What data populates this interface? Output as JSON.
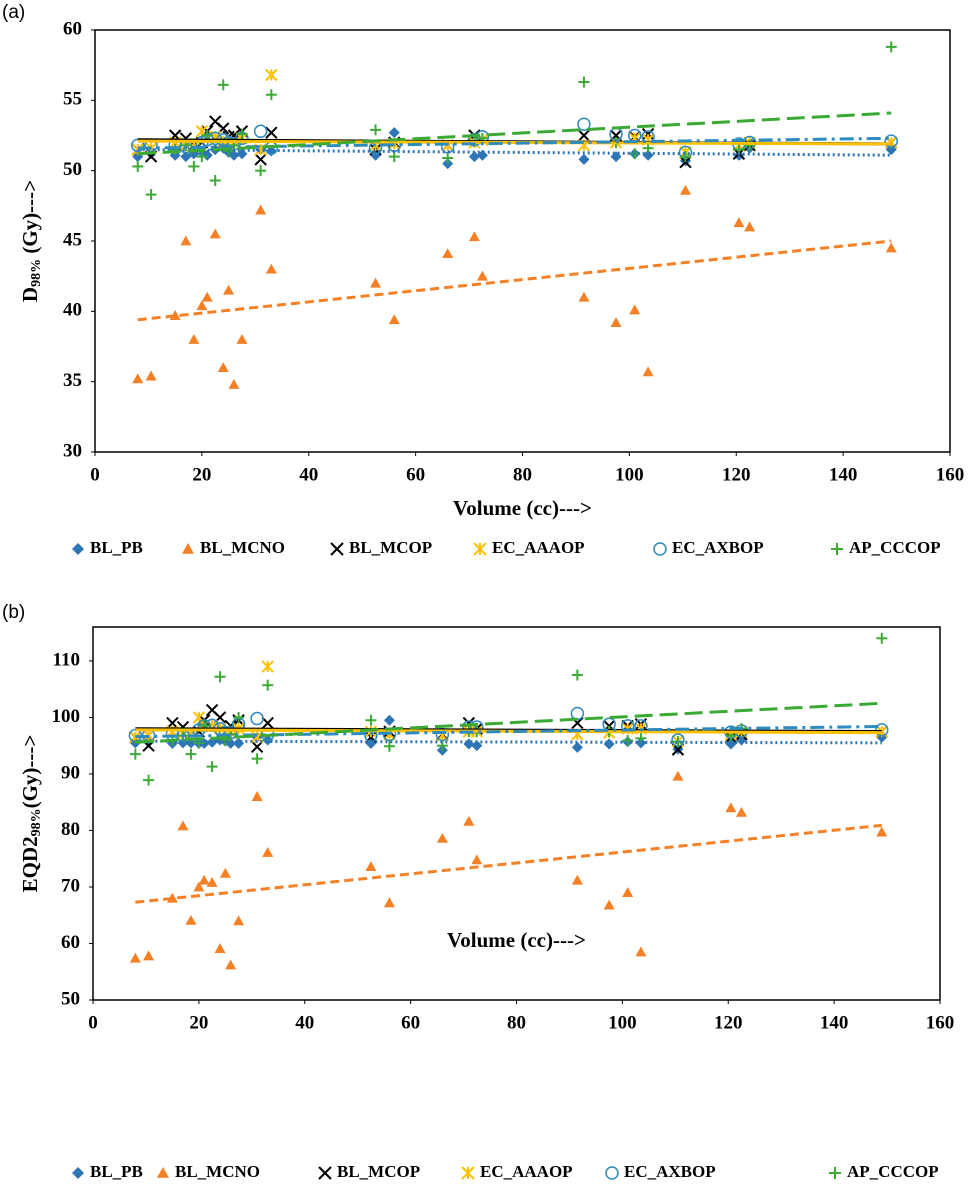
{
  "chart_data": [
    {
      "type": "scatter",
      "label": "(a)",
      "x_label": "Volume (cc)--->",
      "y_label": {
        "main": "D",
        "sub": "98%",
        "rest": " (Gy)--->"
      },
      "xlim": [
        0,
        160
      ],
      "xticks": [
        0,
        20,
        40,
        60,
        80,
        100,
        120,
        140,
        160
      ],
      "ylim": [
        30,
        60
      ],
      "yticks": [
        30,
        35,
        40,
        45,
        50,
        55,
        60
      ],
      "x": [
        8,
        10.5,
        15,
        17,
        18.5,
        20,
        21,
        22.5,
        24,
        25,
        26,
        27.5,
        31,
        33,
        52.5,
        56,
        66,
        71,
        72.5,
        91.5,
        97.5,
        101,
        103.5,
        110.5,
        120.5,
        122.5,
        149
      ],
      "series": [
        {
          "name": "BL_PB",
          "color": "#2e75b6",
          "marker": "diamond",
          "trend_style": "dotted",
          "values": [
            51.0,
            51.2,
            51.1,
            51.0,
            51.2,
            51.3,
            51.1,
            51.5,
            51.6,
            51.3,
            51.1,
            51.2,
            51.5,
            51.4,
            51.1,
            52.7,
            50.5,
            51.0,
            51.1,
            50.8,
            51.0,
            51.2,
            51.1,
            50.7,
            51.1,
            51.6,
            51.5
          ],
          "trend": {
            "x": [
              8,
              149
            ],
            "values": [
              51.5,
              51.1
            ]
          }
        },
        {
          "name": "BL_MCNO",
          "color": "#f58025",
          "marker": "triangle",
          "trend_style": "dashed",
          "values": [
            35.2,
            35.4,
            39.7,
            45.0,
            38.0,
            40.4,
            41.0,
            45.5,
            36.0,
            41.5,
            34.8,
            38.0,
            47.2,
            43.0,
            42.0,
            39.4,
            44.1,
            45.3,
            42.5,
            41.0,
            39.2,
            40.1,
            35.7,
            48.6,
            46.3,
            46.0,
            44.5
          ],
          "trend": {
            "x": [
              8,
              149
            ],
            "values": [
              39.4,
              45.0
            ]
          }
        },
        {
          "name": "BL_MCOP",
          "color": "#000000",
          "marker": "x",
          "trend_style": "solid",
          "values": [
            51.5,
            51.0,
            52.5,
            52.3,
            51.8,
            52.0,
            52.8,
            53.5,
            53.0,
            52.4,
            52.5,
            52.8,
            50.8,
            52.7,
            51.5,
            52.0,
            51.8,
            52.5,
            52.2,
            52.5,
            52.5,
            52.4,
            52.6,
            50.6,
            51.2,
            51.8,
            52.0
          ],
          "trend": {
            "x": [
              8,
              149
            ],
            "values": [
              52.2,
              51.9
            ]
          }
        },
        {
          "name": "EC_AAAOP",
          "color": "#ffc000",
          "marker": "asterisk",
          "trend_style": "solid",
          "values": [
            51.5,
            51.6,
            52.0,
            51.8,
            51.7,
            52.8,
            52.4,
            52.4,
            52.1,
            51.9,
            52.0,
            52.3,
            51.5,
            56.8,
            51.8,
            51.9,
            51.8,
            52.0,
            52.2,
            51.8,
            52.0,
            52.3,
            52.2,
            51.3,
            51.8,
            52.0,
            52.0
          ],
          "trend": {
            "x": [
              8,
              149
            ],
            "values": [
              52.1,
              51.9
            ]
          }
        },
        {
          "name": "EC_AXBOP",
          "color": "#2e8bc0",
          "marker": "circle",
          "trend_style": "dashdot",
          "values": [
            51.8,
            51.8,
            51.8,
            51.7,
            51.8,
            52.0,
            52.2,
            52.3,
            52.2,
            52.0,
            51.9,
            52.3,
            52.8,
            51.6,
            51.6,
            51.8,
            51.7,
            52.2,
            52.4,
            53.3,
            52.6,
            52.5,
            52.4,
            51.3,
            51.9,
            52.0,
            52.1
          ],
          "trend": {
            "x": [
              8,
              149
            ],
            "values": [
              51.6,
              52.3
            ]
          }
        },
        {
          "name": "AP_CCCOP",
          "color": "#3aaa35",
          "marker": "plus",
          "trend_style": "longdash",
          "values": [
            50.3,
            48.3,
            51.5,
            51.8,
            50.3,
            51.0,
            52.5,
            49.3,
            56.1,
            51.4,
            51.8,
            52.6,
            50.0,
            55.4,
            52.9,
            51.0,
            50.9,
            52.1,
            52.3,
            56.3,
            52.0,
            51.2,
            51.6,
            51.0,
            51.5,
            51.8,
            58.8
          ],
          "trend": {
            "x": [
              8,
              149
            ],
            "values": [
              51.2,
              54.1
            ]
          }
        }
      ]
    },
    {
      "type": "scatter",
      "label": "(b)",
      "x_label": "Volume (cc)--->",
      "y_label": {
        "main": "EQD2",
        "sub": "98%",
        "rest": "(Gy)--->"
      },
      "xlim": [
        0,
        160
      ],
      "xticks": [
        0,
        20,
        40,
        60,
        80,
        100,
        120,
        140,
        160
      ],
      "ylim": [
        50,
        116
      ],
      "yticks": [
        50,
        60,
        70,
        80,
        90,
        100,
        110
      ],
      "x": [
        8,
        10.5,
        15,
        17,
        18.5,
        20,
        21,
        22.5,
        24,
        25,
        26,
        27.5,
        31,
        33,
        52.5,
        56,
        66,
        71,
        72.5,
        91.5,
        97.5,
        101,
        103.5,
        110.5,
        120.5,
        122.5,
        149
      ],
      "series": [
        {
          "name": "BL_PB",
          "color": "#2e75b6",
          "marker": "diamond",
          "trend_style": "dotted",
          "values": [
            95.5,
            95.6,
            95.4,
            95.5,
            95.5,
            95.4,
            95.4,
            95.6,
            96.0,
            95.8,
            95.4,
            95.4,
            96.5,
            96.0,
            95.4,
            99.5,
            94.2,
            95.3,
            95.0,
            94.7,
            95.3,
            95.7,
            95.5,
            94.4,
            95.3,
            96.0,
            96.5
          ],
          "trend": {
            "x": [
              8,
              149
            ],
            "values": [
              95.8,
              95.5
            ]
          }
        },
        {
          "name": "BL_MCNO",
          "color": "#f58025",
          "marker": "triangle",
          "trend_style": "dashed",
          "values": [
            57.4,
            57.8,
            68.0,
            80.8,
            64.1,
            70.0,
            71.2,
            70.8,
            59.1,
            72.4,
            56.2,
            64.0,
            86.0,
            76.1,
            73.6,
            67.2,
            78.6,
            81.6,
            74.8,
            71.2,
            66.8,
            69.0,
            58.5,
            89.6,
            84.0,
            83.2,
            79.7
          ],
          "trend": {
            "x": [
              8,
              149
            ],
            "values": [
              67.3,
              80.9
            ]
          }
        },
        {
          "name": "BL_MCOP",
          "color": "#000000",
          "marker": "x",
          "trend_style": "solid",
          "values": [
            96.5,
            95.0,
            99.0,
            98.3,
            97.0,
            97.5,
            99.5,
            101.3,
            100.0,
            97.5,
            98.5,
            99.5,
            94.8,
            99.0,
            96.5,
            97.5,
            97.0,
            99.0,
            98.0,
            99.0,
            98.5,
            98.5,
            98.8,
            94.3,
            96.5,
            97.0,
            97.5
          ],
          "trend": {
            "x": [
              8,
              149
            ],
            "values": [
              98.0,
              97.5
            ]
          }
        },
        {
          "name": "EC_AAAOP",
          "color": "#ffc000",
          "marker": "asterisk",
          "trend_style": "solid",
          "values": [
            96.5,
            96.8,
            97.5,
            97.0,
            97.0,
            100.0,
            98.6,
            98.5,
            98.0,
            97.5,
            97.3,
            98.0,
            96.5,
            109.0,
            97.5,
            97.0,
            96.8,
            97.5,
            97.5,
            97.0,
            97.3,
            98.0,
            98.0,
            95.8,
            97.0,
            97.5,
            97.5
          ],
          "trend": {
            "x": [
              8,
              149
            ],
            "values": [
              97.8,
              97.3
            ]
          }
        },
        {
          "name": "EC_AXBOP",
          "color": "#2e8bc0",
          "marker": "circle",
          "trend_style": "dashdot",
          "values": [
            96.8,
            96.8,
            97.0,
            96.8,
            97.0,
            97.8,
            98.5,
            98.6,
            98.0,
            97.3,
            97.3,
            98.8,
            99.8,
            97.0,
            96.8,
            97.0,
            97.0,
            98.3,
            98.3,
            100.7,
            98.8,
            98.5,
            98.5,
            96.0,
            97.4,
            97.6,
            97.8
          ],
          "trend": {
            "x": [
              8,
              149
            ],
            "values": [
              96.6,
              98.4
            ]
          }
        },
        {
          "name": "AP_CCCOP",
          "color": "#3aaa35",
          "marker": "plus",
          "trend_style": "longdash",
          "values": [
            93.5,
            88.9,
            96.0,
            96.8,
            93.5,
            95.5,
            98.5,
            91.3,
            107.2,
            96.0,
            97.0,
            100.0,
            92.7,
            105.7,
            99.5,
            94.9,
            95.0,
            97.5,
            97.5,
            107.5,
            97.5,
            95.9,
            96.3,
            95.7,
            96.8,
            98.0,
            114.0
          ],
          "trend": {
            "x": [
              8,
              149
            ],
            "values": [
              95.6,
              102.5
            ]
          }
        }
      ]
    }
  ]
}
